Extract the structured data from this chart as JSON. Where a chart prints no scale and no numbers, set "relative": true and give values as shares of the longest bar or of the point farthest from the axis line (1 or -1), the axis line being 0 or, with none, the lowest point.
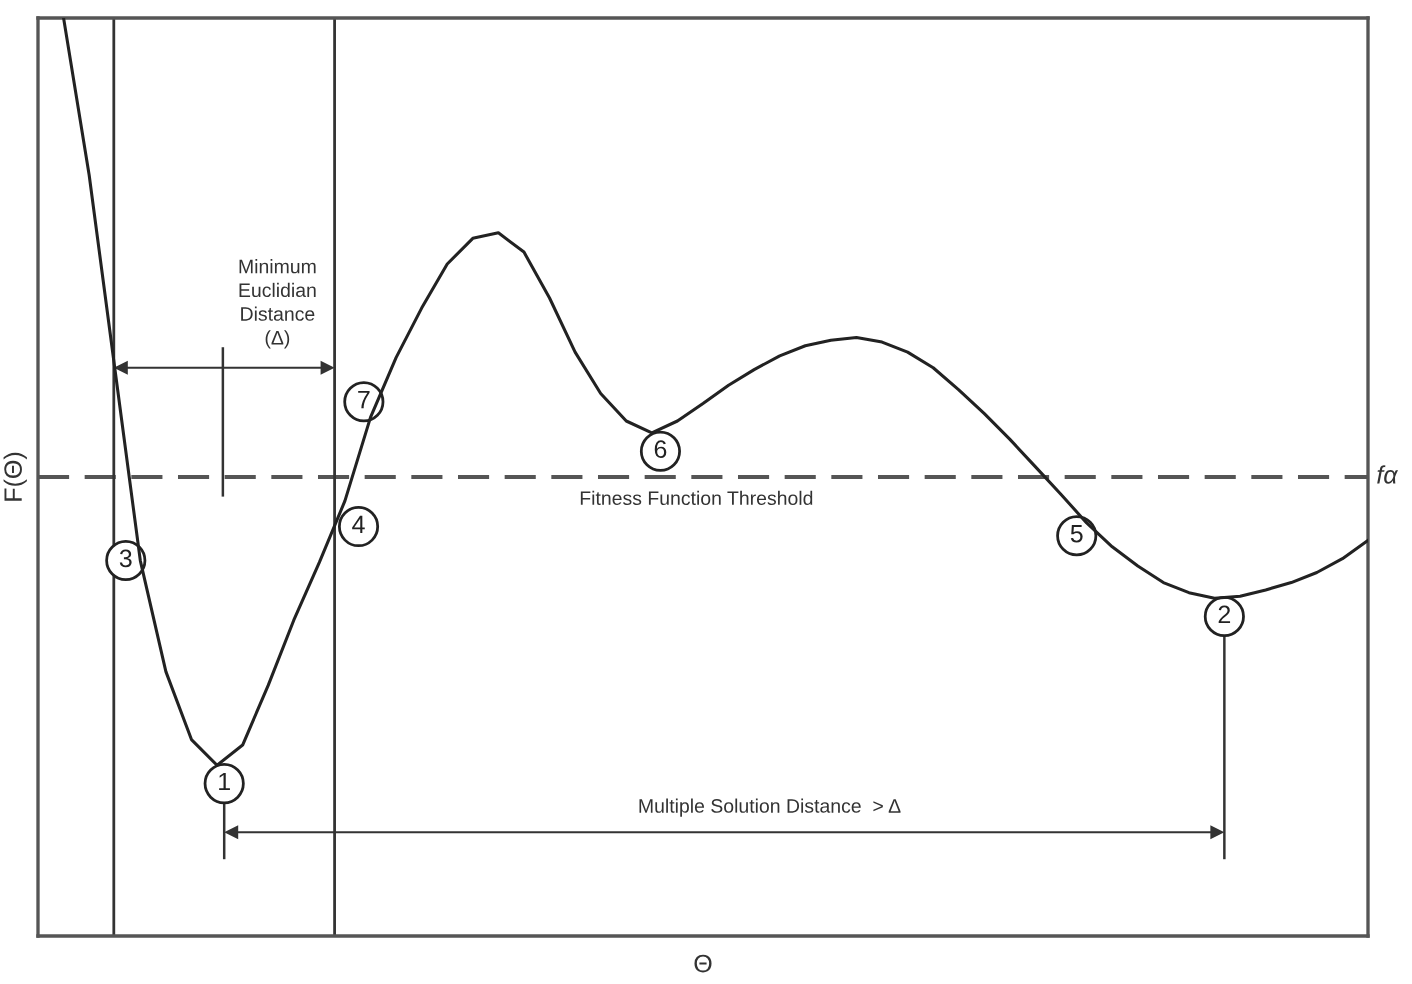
{
  "chart_data": {
    "type": "line",
    "relative": true,
    "xlabel": "Θ",
    "ylabel": "F(Θ)",
    "categories": [
      null,
      null,
      null,
      null,
      null,
      null,
      null,
      null,
      null,
      null,
      null,
      null,
      null,
      null,
      null,
      null,
      null,
      null,
      null,
      null,
      null,
      null,
      null,
      null,
      null,
      null,
      null,
      null,
      null,
      null,
      null,
      null,
      null,
      null,
      null,
      null,
      null,
      null,
      null,
      null,
      null,
      null,
      null,
      null,
      null,
      null,
      null,
      null,
      null,
      null,
      null,
      null
    ],
    "series": [
      {
        "color": "#222222",
        "values": [
          1.0,
          0.829,
          0.619,
          0.409,
          0.288,
          0.214,
          0.186,
          0.208,
          0.273,
          0.344,
          0.407,
          0.474,
          0.565,
          0.63,
          0.684,
          0.732,
          0.76,
          0.766,
          0.745,
          0.695,
          0.636,
          0.591,
          0.561,
          0.548,
          0.561,
          0.58,
          0.6,
          0.617,
          0.632,
          0.643,
          0.649,
          0.652,
          0.647,
          0.636,
          0.619,
          0.595,
          0.569,
          0.541,
          0.511,
          0.481,
          0.45,
          0.424,
          0.403,
          0.385,
          0.374,
          0.368,
          0.37,
          0.377,
          0.385,
          0.396,
          0.411,
          0.431
        ]
      }
    ],
    "grid": false,
    "line_style": "solid",
    "ref_lines": [
      {
        "axis": "y",
        "value": 0.5,
        "label": "fα",
        "color": "#555555",
        "line_style": "dashed"
      }
    ],
    "annotations": [
      "Fitness Function Threshold",
      "Minimum\nEuclidian\nDistance\n(Δ)",
      "Multiple Solution Distance  > Δ",
      "1",
      "2",
      "3",
      "4",
      "5",
      "6",
      "7"
    ]
  }
}
